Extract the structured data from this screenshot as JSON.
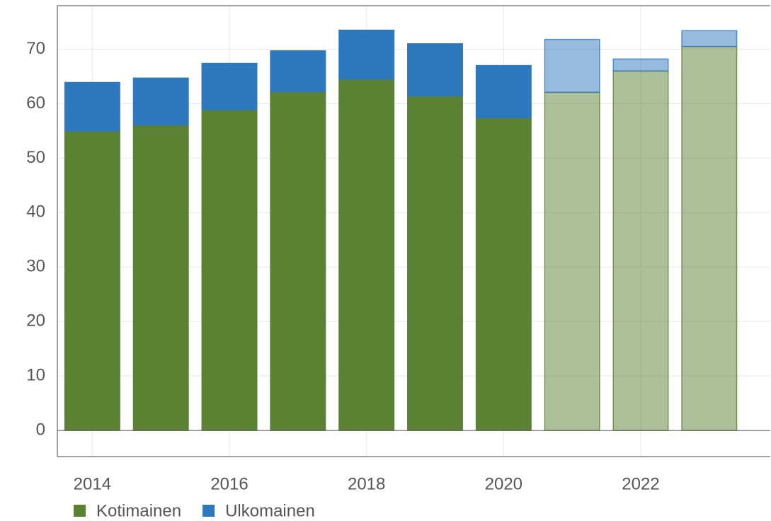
{
  "chart_data": {
    "type": "stacked_bar",
    "x": [
      2014,
      2015,
      2016,
      2017,
      2018,
      2019,
      2020,
      2021,
      2022,
      2023
    ],
    "alpha": [
      1,
      1,
      1,
      1,
      1,
      1,
      1,
      0.5,
      0.5,
      0.5
    ],
    "series": [
      {
        "name": "Kotimainen",
        "color": "#5b8233",
        "values": [
          55.0,
          56.1,
          58.9,
          62.2,
          64.5,
          61.4,
          57.4,
          62.1,
          66.0,
          70.5
        ]
      },
      {
        "name": "Ulkomainen",
        "color": "#2e78bd",
        "values": [
          8.9,
          8.6,
          8.5,
          7.5,
          9.0,
          9.6,
          9.6,
          9.7,
          2.2,
          2.9
        ]
      }
    ],
    "xlim": [
      2013.49,
      2023.89
    ],
    "xticks": [
      2014,
      2016,
      2018,
      2020,
      2022
    ],
    "ylim": [
      -4.8,
      78
    ],
    "yticks": [
      0,
      10,
      20,
      30,
      40,
      50,
      60,
      70
    ],
    "grid": true,
    "legend": "bottom-left"
  }
}
